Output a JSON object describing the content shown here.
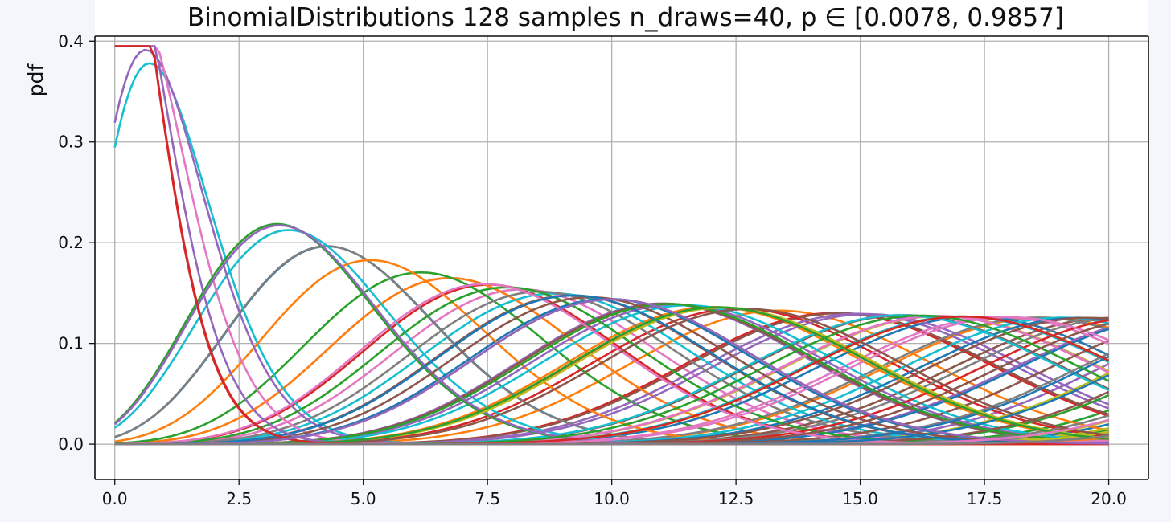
{
  "chart_data": {
    "type": "line",
    "title": "BinomialDistributions 128 samples n_draws=40,  p ∈ [0.0078, 0.9857]",
    "xlabel": "",
    "ylabel": "pdf",
    "xlim": [
      -0.4,
      20.8
    ],
    "ylim": [
      -0.035,
      0.405
    ],
    "x_ticks": [
      0.0,
      2.5,
      5.0,
      7.5,
      10.0,
      12.5,
      15.0,
      17.5,
      20.0
    ],
    "x_tick_labels": [
      "0.0",
      "2.5",
      "5.0",
      "7.5",
      "10.0",
      "12.5",
      "15.0",
      "17.5",
      "20.0"
    ],
    "y_ticks": [
      0.0,
      0.1,
      0.2,
      0.3,
      0.4
    ],
    "y_tick_labels": [
      "0.0",
      "0.1",
      "0.2",
      "0.3",
      "0.4"
    ],
    "grid": true,
    "legend": "none",
    "x_range": [
      0,
      20
    ],
    "n_draws": 40,
    "sample_count": 128,
    "p_range": [
      0.0078,
      0.9857
    ],
    "series_description": "128 binomial pdf curves (continuous approximation), one per p value, cycling the 10 default colors",
    "colors": [
      "#1f77b4",
      "#ff7f0e",
      "#2ca02c",
      "#d62728",
      "#9467bd",
      "#8c564b",
      "#e377c2",
      "#7f7f7f",
      "#bcbd22",
      "#17becf"
    ]
  }
}
